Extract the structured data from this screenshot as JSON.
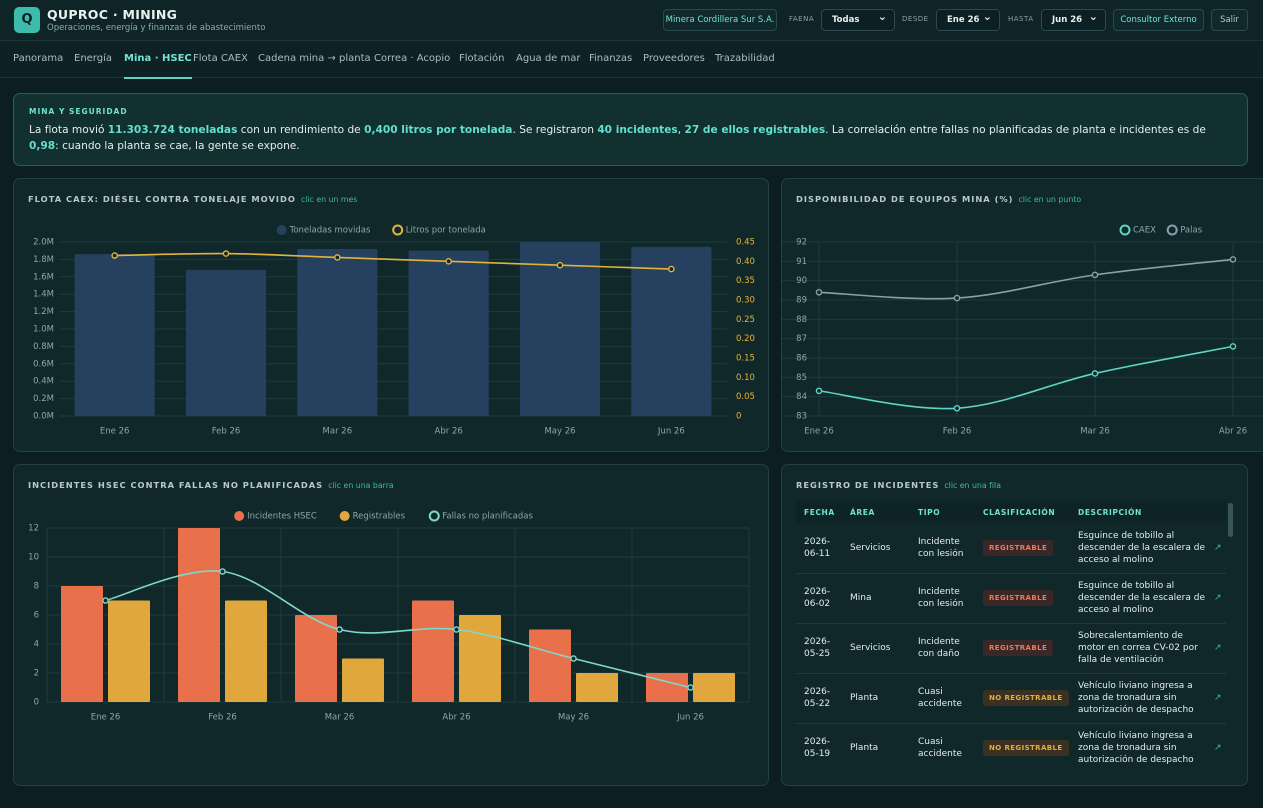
{
  "header": {
    "logo": "Q",
    "title": "QUPROC · MINING",
    "subtitle": "Operaciones, energía y finanzas de abastecimiento",
    "company": "Minera Cordillera Sur S.A.",
    "faena_label": "FAENA",
    "faena": "Todas",
    "desde_label": "DESDE",
    "desde": "Ene 26",
    "hasta_label": "HASTA",
    "hasta": "Jun 26",
    "role": "Consultor Externo",
    "logout": "Salir"
  },
  "nav": {
    "tabs": [
      "Panorama",
      "Energía",
      "Mina · HSEC",
      "Flota CAEX",
      "Cadena mina → planta",
      "Correa · Acopio",
      "Flotación",
      "Agua de mar",
      "Finanzas",
      "Proveedores",
      "Trazabilidad"
    ],
    "active": 2
  },
  "summary": {
    "label": "MINA Y SEGURIDAD",
    "parts": [
      "La flota movió ",
      "11.303.724 toneladas",
      " con un rendimiento de ",
      "0,400 litros por tonelada",
      ". Se registraron ",
      "40 incidentes",
      ", ",
      "27 de ellos registrables",
      ". La correlación entre fallas no planificadas de planta e incidentes es de ",
      "0,98",
      ": cuando la planta se cae, la gente se expone."
    ]
  },
  "chart_data": [
    {
      "type": "combo",
      "title": "FLOTA CAEX: DIÉSEL CONTRA TONELAJE MOVIDO",
      "hint": "clic en un mes",
      "categories": [
        "Ene 26",
        "Feb 26",
        "Mar 26",
        "Abr 26",
        "May 26",
        "Jun 26"
      ],
      "series": [
        {
          "name": "Toneladas movidas",
          "type": "bar",
          "color": "#26405f",
          "values": [
            1860000,
            1680000,
            1920000,
            1900000,
            2000000,
            1944000
          ]
        },
        {
          "name": "Litros por tonelada",
          "type": "line",
          "axis": "y2",
          "color": "#e3b43c",
          "values": [
            0.415,
            0.42,
            0.41,
            0.4,
            0.39,
            0.38
          ]
        }
      ],
      "ylim": [
        0,
        2000000
      ],
      "yticks": [
        {
          "value": 0,
          "label": "0.0M"
        },
        {
          "value": 200000,
          "label": "0.2M"
        },
        {
          "value": 400000,
          "label": "0.4M"
        },
        {
          "value": 600000,
          "label": "0.6M"
        },
        {
          "value": 800000,
          "label": "0.8M"
        },
        {
          "value": 1000000,
          "label": "1.0M"
        },
        {
          "value": 1200000,
          "label": "1.2M"
        },
        {
          "value": 1400000,
          "label": "1.4M"
        },
        {
          "value": 1600000,
          "label": "1.6M"
        },
        {
          "value": 1800000,
          "label": "1.8M"
        },
        {
          "value": 2000000,
          "label": "2.0M"
        }
      ],
      "y2lim": [
        0,
        0.45
      ],
      "y2ticks": [
        0,
        0.05,
        {
          "value": 0.1,
          "label": "0.10"
        },
        0.15,
        {
          "value": 0.2,
          "label": "0.20"
        },
        0.25,
        {
          "value": 0.3,
          "label": "0.30"
        },
        0.35,
        {
          "value": 0.4,
          "label": "0.40"
        },
        0.45
      ],
      "grid": true,
      "xgrid": false
    },
    {
      "type": "line",
      "title": "DISPONIBILIDAD DE EQUIPOS MINA (%)",
      "hint": "clic en un punto",
      "categories": [
        "Ene 26",
        "Feb 26",
        "Mar 26",
        "Abr 26"
      ],
      "series": [
        {
          "name": "CAEX",
          "type": "line",
          "color": "#5fd3c4",
          "values": [
            84.3,
            83.4,
            85.2,
            86.6
          ]
        },
        {
          "name": "Palas",
          "type": "line",
          "color": "#8a9fab",
          "values": [
            89.4,
            89.1,
            90.3,
            91.1
          ]
        }
      ],
      "ylim": [
        83,
        92
      ],
      "yticks": [
        83,
        84,
        85,
        86,
        87,
        88,
        89,
        90,
        91,
        92
      ],
      "grid": true,
      "xgrid": true
    },
    {
      "type": "combo",
      "title": "INCIDENTES HSEC CONTRA FALLAS NO PLANIFICADAS",
      "hint": "clic en una barra",
      "categories": [
        "Ene 26",
        "Feb 26",
        "Mar 26",
        "Abr 26",
        "May 26",
        "Jun 26"
      ],
      "series": [
        {
          "name": "Incidentes HSEC",
          "type": "bar",
          "color": "#e8714b",
          "values": [
            8,
            12,
            6,
            7,
            5,
            2
          ]
        },
        {
          "name": "Registrables",
          "type": "bar",
          "color": "#e0a83c",
          "values": [
            7,
            7,
            3,
            6,
            2,
            2
          ]
        },
        {
          "name": "Fallas no planificadas",
          "type": "line",
          "color": "#7fd8cd",
          "values": [
            7,
            9,
            5,
            5,
            3,
            1
          ]
        }
      ],
      "ylim": [
        0,
        12
      ],
      "yticks": [
        0,
        2,
        4,
        6,
        8,
        10,
        12
      ],
      "grid": true,
      "xgrid": true
    }
  ],
  "table": {
    "title": "REGISTRO DE INCIDENTES",
    "hint": "clic en una fila",
    "columns": [
      "FECHA",
      "ÁREA",
      "TIPO",
      "CLASIFICACIÓN",
      "DESCRIPCIÓN"
    ],
    "rows": [
      [
        "2026-06-11",
        "Servicios",
        "Incidente con lesión",
        "REGISTRABLE",
        "Esguince de tobillo al descender de la escalera de acceso al molino"
      ],
      [
        "2026-06-02",
        "Mina",
        "Incidente con lesión",
        "REGISTRABLE",
        "Esguince de tobillo al descender de la escalera de acceso al molino"
      ],
      [
        "2026-05-25",
        "Servicios",
        "Incidente con daño",
        "REGISTRABLE",
        "Sobrecalentamiento de motor en correa CV-02 por falla de ventilación"
      ],
      [
        "2026-05-22",
        "Planta",
        "Cuasi accidente",
        "NO REGISTRABLE",
        "Vehículo liviano ingresa a zona de tronadura sin autorización de despacho"
      ],
      [
        "2026-05-19",
        "Planta",
        "Cuasi accidente",
        "NO REGISTRABLE",
        "Vehículo liviano ingresa a zona de tronadura sin autorización de despacho"
      ]
    ]
  }
}
